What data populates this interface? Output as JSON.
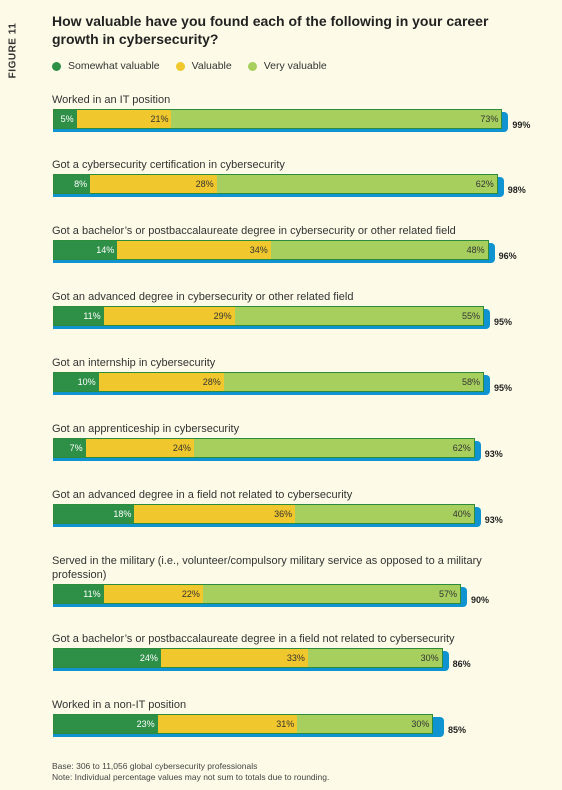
{
  "figure_label": "FIGURE 11",
  "legend": [
    {
      "label": "Somewhat valuable",
      "color": "#2e8f47"
    },
    {
      "label": "Valuable",
      "color": "#f0c72c"
    },
    {
      "label": "Very valuable",
      "color": "#a6cf5e"
    }
  ],
  "total_color": "#0f93d1",
  "chart_data": {
    "type": "bar",
    "orientation": "horizontal-stacked",
    "title": "How valuable have you found each of the following in your career growth in cybersecurity?",
    "series": [
      {
        "name": "Somewhat valuable",
        "values": [
          5,
          8,
          14,
          11,
          10,
          7,
          18,
          11,
          24,
          23
        ]
      },
      {
        "name": "Valuable",
        "values": [
          21,
          28,
          34,
          29,
          28,
          24,
          36,
          22,
          33,
          31
        ]
      },
      {
        "name": "Very valuable",
        "values": [
          73,
          62,
          48,
          55,
          58,
          62,
          40,
          57,
          30,
          30
        ]
      }
    ],
    "categories": [
      "Worked in an IT position",
      "Got a cybersecurity certification in cybersecurity",
      "Got a bachelor’s or postbaccalaureate degree in cybersecurity or other related field",
      "Got an advanced degree in cybersecurity or other related field",
      "Got an internship in cybersecurity",
      "Got an apprenticeship in cybersecurity",
      "Got an advanced degree in a field not related to cybersecurity",
      "Served in the military (i.e., volunteer/compulsory military service as opposed to a military profession)",
      "Got a bachelor’s or postbaccalaureate degree in a field not related to cybersecurity",
      "Worked in a non-IT position"
    ],
    "totals": [
      99,
      98,
      96,
      95,
      95,
      93,
      93,
      90,
      86,
      85
    ]
  },
  "notes": {
    "base": "Base: 306 to 11,056 global cybersecurity professionals",
    "note": "Note: Individual percentage values may not sum to totals due to rounding."
  }
}
